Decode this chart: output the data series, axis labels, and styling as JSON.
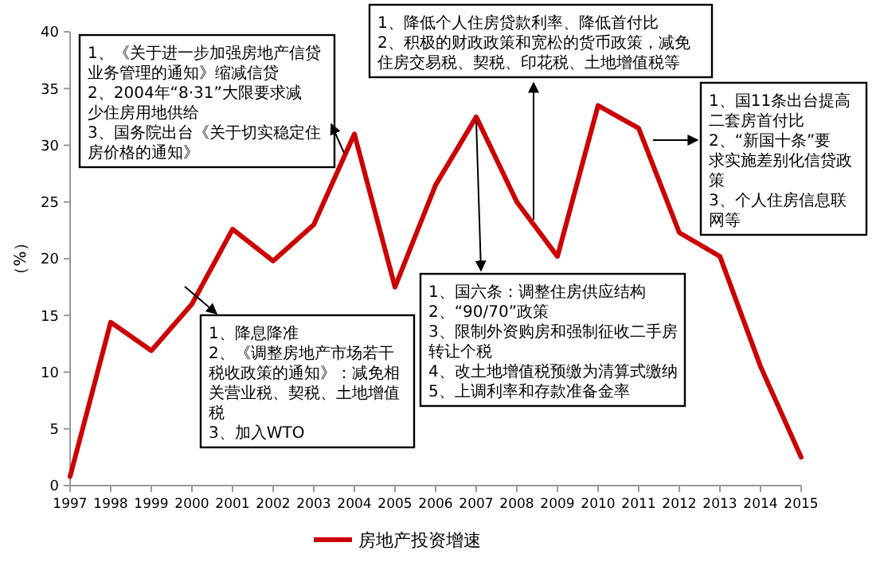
{
  "chart_data": {
    "type": "line",
    "ylabel": "（%）",
    "categories": [
      "1997",
      "1998",
      "1999",
      "2000",
      "2001",
      "2002",
      "2003",
      "2004",
      "2005",
      "2006",
      "2007",
      "2008",
      "2009",
      "2010",
      "2011",
      "2012",
      "2013",
      "2014",
      "2015"
    ],
    "series": [
      {
        "name": "房地产投资增速",
        "color": "#cc0000",
        "values": [
          0.8,
          14.4,
          11.9,
          16,
          22.6,
          19.8,
          23,
          31,
          17.5,
          26.5,
          32.5,
          25,
          20.2,
          33.5,
          31.5,
          22.3,
          20.2,
          10.5,
          2.5
        ]
      }
    ],
    "ylim": [
      0,
      40
    ],
    "yticks": [
      0,
      5,
      10,
      15,
      20,
      25,
      30,
      35,
      40
    ],
    "grid": false,
    "legend": "bottom",
    "marker": "none",
    "line_style": "solid",
    "annotations": [
      "1、《关于进一步加强房地产信贷业务管理的通知》缩减信贷\n2、2004年“8·31”大限要求减少住房用地供给\n3、国务院出台《关于切实稳定住房价格的通知》",
      "1、降低个人住房贷款利率、降低首付比\n2、积极的财政政策和宽松的货币政策，减免住房交易税、契税、印花税、土地增值税等",
      "1、降息降准\n2、《调整房地产市场若干税收政策的通知》：减免相关营业税、契税、土地增值税\n3、加入WTO",
      "1、国六条：调整住房供应结构\n2、“90/70”政策\n3、限制外资购房和强制征收二手房转让个税\n4、改土地增值税预缴为清算式缴纳\n5、上调利率和存款准备金率",
      "1、国11条出台提高二套房首付比\n2、“新国十条”要求实施差别化信贷政策\n3、个人住房信息联网等"
    ]
  }
}
